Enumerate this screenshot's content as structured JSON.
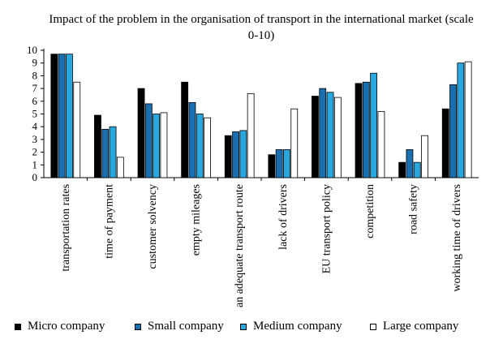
{
  "chart_data": {
    "type": "bar",
    "title": "Impact of the problem in the organisation of transport in the international market (scale 0-10)",
    "categories": [
      "transportation rates",
      "time of payment",
      "customer solvency",
      "empty mileages",
      "an adequate transport route",
      "lack of drivers",
      "EU transport policy",
      "competition",
      "road safety",
      "working time of drivers"
    ],
    "ylim": [
      0,
      10
    ],
    "yticks": [
      0,
      1,
      2,
      3,
      4,
      5,
      6,
      7,
      8,
      9,
      10
    ],
    "legend_position": "bottom",
    "grid": false,
    "series": [
      {
        "name": "Micro company",
        "color": "#000000",
        "values": [
          9.7,
          4.9,
          7.0,
          7.5,
          3.3,
          1.8,
          6.4,
          7.4,
          1.2,
          5.4
        ]
      },
      {
        "name": "Small company",
        "color": "#1a6fb0",
        "values": [
          9.7,
          3.8,
          5.8,
          5.9,
          3.6,
          2.2,
          7.0,
          7.5,
          2.2,
          7.3
        ]
      },
      {
        "name": "Medium company",
        "color": "#29a8e0",
        "values": [
          9.7,
          4.0,
          5.0,
          5.0,
          3.7,
          2.2,
          6.7,
          8.2,
          1.2,
          9.0
        ]
      },
      {
        "name": "Large company",
        "color": "#ffffff",
        "values": [
          7.5,
          1.6,
          5.1,
          4.7,
          6.6,
          5.4,
          6.3,
          5.2,
          3.3,
          9.1
        ]
      }
    ]
  }
}
